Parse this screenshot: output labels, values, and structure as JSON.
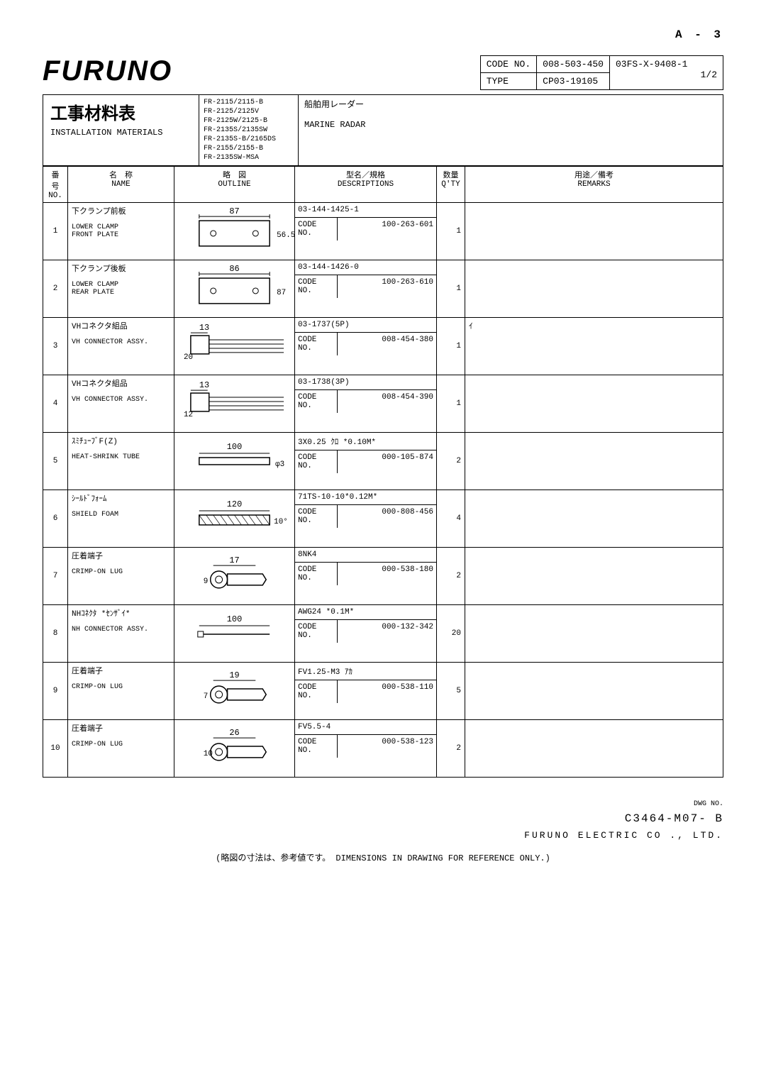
{
  "page_num": "A - 3",
  "logo": "FURUNO",
  "header": {
    "code_no_label": "CODE NO.",
    "code_no": "008-503-450",
    "model": "03FS-X-9408-1",
    "type_label": "TYPE",
    "type": "CP03-19105",
    "page": "1/2"
  },
  "title": {
    "jp": "工事材料表",
    "en": "INSTALLATION MATERIALS",
    "models": "FR-2115/2115-B\nFR-2125/2125V\nFR-2125W/2125-B\nFR-2135S/2135SW\nFR-2135S-B/2165DS\nFR-2155/2155-B\nFR-2135SW-MSA",
    "right_jp": "船舶用レーダー",
    "right_en": "MARINE RADAR"
  },
  "columns": {
    "no_jp": "番 号",
    "no_en": "NO.",
    "name_jp": "名　称",
    "name_en": "NAME",
    "outline_jp": "略　図",
    "outline_en": "OUTLINE",
    "desc_jp": "型名／規格",
    "desc_en": "DESCRIPTIONS",
    "qty_jp": "数量",
    "qty_en": "Q'TY",
    "rem_jp": "用途／備考",
    "rem_en": "REMARKS",
    "code_label": "CODE NO."
  },
  "rows": [
    {
      "no": "1",
      "jp": "下クランプ前板",
      "en": "LOWER CLAMP\nFRONT PLATE",
      "dim1": "87",
      "dim2": "56.5",
      "desc": "03-144-1425-1",
      "code": "100-263-601",
      "qty": "1",
      "rem": ""
    },
    {
      "no": "2",
      "jp": "下クランプ後板",
      "en": "LOWER CLAMP\nREAR PLATE",
      "dim1": "86",
      "dim2": "87",
      "desc": "03-144-1426-0",
      "code": "100-263-610",
      "qty": "1",
      "rem": ""
    },
    {
      "no": "3",
      "jp": "VHコネクタ組品",
      "en": "VH CONNECTOR ASSY.",
      "dim1": "13",
      "dim2": "20",
      "desc": "03-1737(5P)",
      "code": "008-454-380",
      "qty": "1",
      "rem": "ｲ"
    },
    {
      "no": "4",
      "jp": "VHコネクタ組品",
      "en": "VH CONNECTOR ASSY.",
      "dim1": "13",
      "dim2": "12",
      "desc": "03-1738(3P)",
      "code": "008-454-390",
      "qty": "1",
      "rem": ""
    },
    {
      "no": "5",
      "jp": "ｽﾐﾁｭｰﾌﾞF(Z)",
      "en": "HEAT-SHRINK TUBE",
      "dim1": "100",
      "dim2": "φ3",
      "desc": "3X0.25 ｸﾛ *0.10M*",
      "code": "000-105-874",
      "qty": "2",
      "rem": ""
    },
    {
      "no": "6",
      "jp": "ｼｰﾙﾄﾞﾌｫｰﾑ",
      "en": "SHIELD FOAM",
      "dim1": "120",
      "dim2": "10",
      "desc": "71TS-10-10*0.12M*",
      "code": "000-808-456",
      "qty": "4",
      "rem": ""
    },
    {
      "no": "7",
      "jp": "圧着端子",
      "en": "CRIMP-ON LUG",
      "dim1": "17",
      "dim2": "9",
      "desc": "8NK4",
      "code": "000-538-180",
      "qty": "2",
      "rem": ""
    },
    {
      "no": "8",
      "jp": "NHｺﾈｸﾀ *ｾﾝｻﾞｲ*",
      "en": "NH CONNECTOR ASSY.",
      "dim1": "100",
      "dim2": "",
      "desc": "AWG24 *0.1M*",
      "code": "000-132-342",
      "qty": "20",
      "rem": ""
    },
    {
      "no": "9",
      "jp": "圧着端子",
      "en": "CRIMP-ON LUG",
      "dim1": "19",
      "dim2": "7",
      "desc": "FV1.25-M3 ｱｶ",
      "code": "000-538-110",
      "qty": "5",
      "rem": ""
    },
    {
      "no": "10",
      "jp": "圧着端子",
      "en": "CRIMP-ON LUG",
      "dim1": "26",
      "dim2": "10",
      "desc": "FV5.5-4",
      "code": "000-538-123",
      "qty": "2",
      "rem": ""
    }
  ],
  "footer": {
    "dwg_label": "DWG NO.",
    "dwg_no": "C3464-M07- B",
    "company": "FURUNO ELECTRIC CO ., LTD.",
    "note_jp": "(略図の寸法は、参考値です。",
    "note_en": "DIMENSIONS IN DRAWING FOR REFERENCE ONLY.)"
  }
}
